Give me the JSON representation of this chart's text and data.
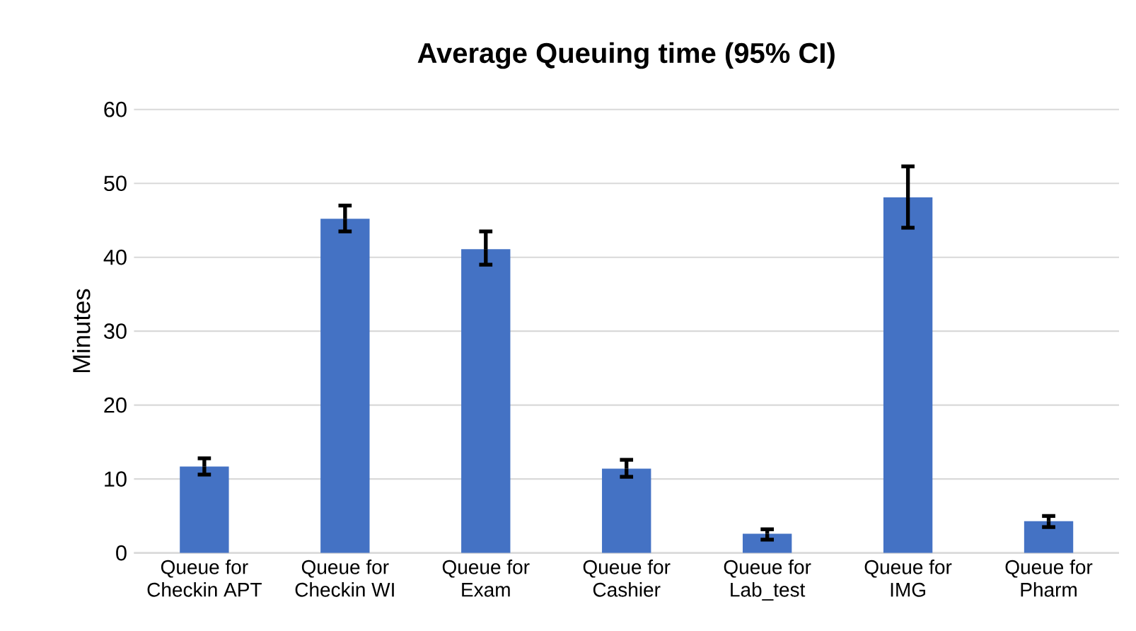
{
  "chart_data": {
    "type": "bar",
    "title": "Average Queuing time (95% CI)",
    "ylabel": "Minutes",
    "categories": [
      "Queue for Checkin APT",
      "Queue for Checkin WI",
      "Queue for Exam",
      "Queue for Cashier",
      "Queue for Lab_test",
      "Queue for IMG",
      "Queue for Pharm"
    ],
    "values": [
      11.7,
      45.2,
      41.1,
      11.4,
      2.6,
      48.1,
      4.3
    ],
    "errors": [
      [
        10.6,
        12.8
      ],
      [
        43.5,
        47.0
      ],
      [
        39.0,
        43.5
      ],
      [
        10.3,
        12.6
      ],
      [
        1.8,
        3.2
      ],
      [
        44.0,
        52.3
      ],
      [
        3.5,
        5.0
      ]
    ],
    "color": "#4472c4",
    "ylim": [
      0,
      60
    ],
    "yticks": [
      0,
      10,
      20,
      30,
      40,
      50,
      60
    ],
    "grid": "y"
  }
}
